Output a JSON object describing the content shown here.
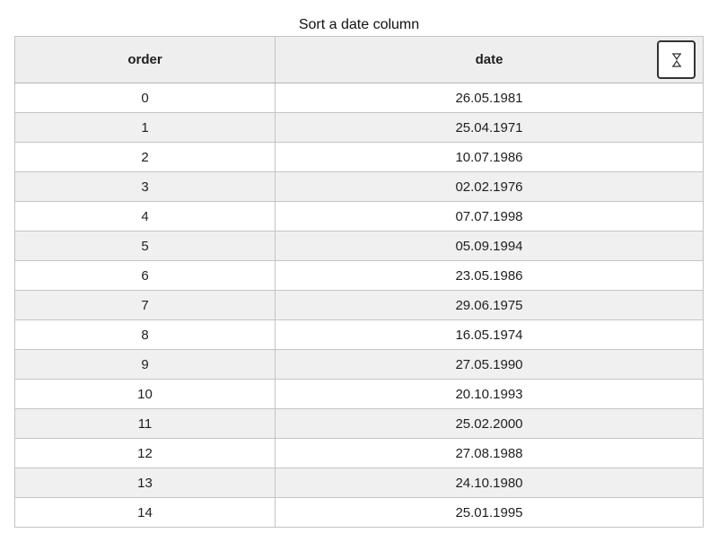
{
  "caption": "Sort a date column",
  "table": {
    "columns": [
      {
        "label": "order"
      },
      {
        "label": "date"
      }
    ],
    "sort_icon": "sort-toggle-icon",
    "rows": [
      {
        "order": "0",
        "date": "26.05.1981"
      },
      {
        "order": "1",
        "date": "25.04.1971"
      },
      {
        "order": "2",
        "date": "10.07.1986"
      },
      {
        "order": "3",
        "date": "02.02.1976"
      },
      {
        "order": "4",
        "date": "07.07.1998"
      },
      {
        "order": "5",
        "date": "05.09.1994"
      },
      {
        "order": "6",
        "date": "23.05.1986"
      },
      {
        "order": "7",
        "date": "29.06.1975"
      },
      {
        "order": "8",
        "date": "16.05.1974"
      },
      {
        "order": "9",
        "date": "27.05.1990"
      },
      {
        "order": "10",
        "date": "20.10.1993"
      },
      {
        "order": "11",
        "date": "25.02.2000"
      },
      {
        "order": "12",
        "date": "27.08.1988"
      },
      {
        "order": "13",
        "date": "24.10.1980"
      },
      {
        "order": "14",
        "date": "25.01.1995"
      }
    ]
  }
}
